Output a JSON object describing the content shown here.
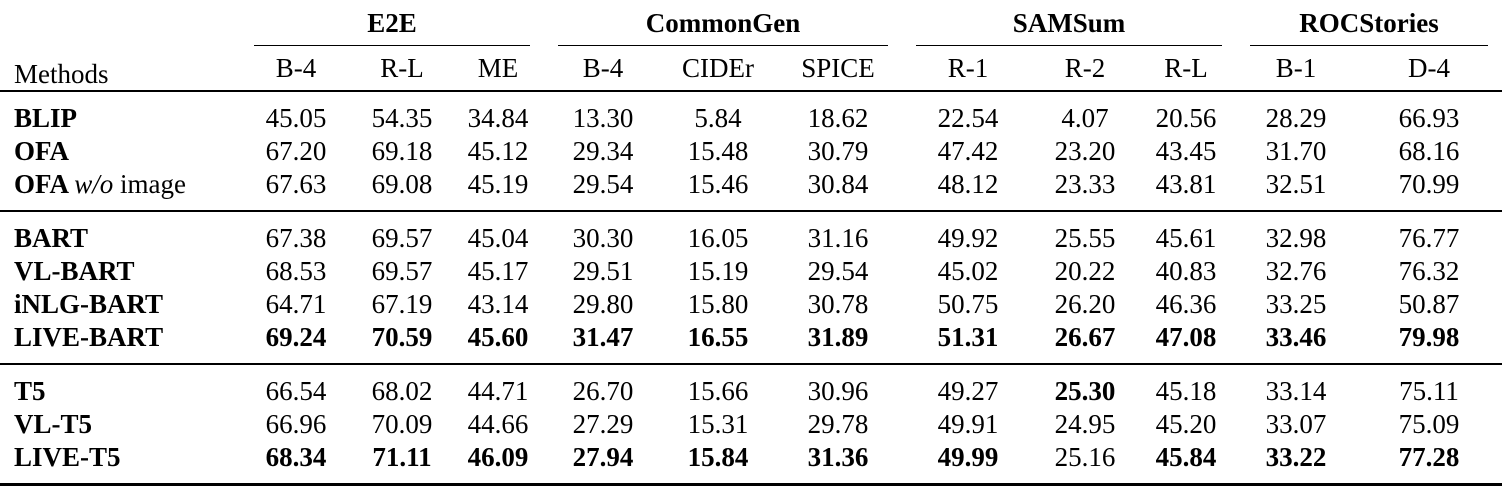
{
  "table": {
    "methods_header": "Methods",
    "groups_header": [
      {
        "label": "E2E",
        "cols": [
          "B-4",
          "R-L",
          "ME"
        ]
      },
      {
        "label": "CommonGen",
        "cols": [
          "B-4",
          "CIDEr",
          "SPICE"
        ]
      },
      {
        "label": "SAMSum",
        "cols": [
          "R-1",
          "R-2",
          "R-L"
        ]
      },
      {
        "label": "ROCStories",
        "cols": [
          "B-1",
          "D-4"
        ]
      }
    ],
    "row_groups": [
      {
        "rows": [
          {
            "method": [
              {
                "text": "BLIP",
                "style": "bold"
              }
            ],
            "values": [
              "45.05",
              "54.35",
              "34.84",
              "13.30",
              "5.84",
              "18.62",
              "22.54",
              "4.07",
              "20.56",
              "28.29",
              "66.93"
            ],
            "bold": []
          },
          {
            "method": [
              {
                "text": "OFA",
                "style": "bold"
              }
            ],
            "values": [
              "67.20",
              "69.18",
              "45.12",
              "29.34",
              "15.48",
              "30.79",
              "47.42",
              "23.20",
              "43.45",
              "31.70",
              "68.16"
            ],
            "bold": []
          },
          {
            "method": [
              {
                "text": "OFA ",
                "style": "bold"
              },
              {
                "text": "w/o",
                "style": "italic"
              },
              {
                "text": " image",
                "style": "normal"
              }
            ],
            "values": [
              "67.63",
              "69.08",
              "45.19",
              "29.54",
              "15.46",
              "30.84",
              "48.12",
              "23.33",
              "43.81",
              "32.51",
              "70.99"
            ],
            "bold": []
          }
        ]
      },
      {
        "rows": [
          {
            "method": [
              {
                "text": "BART",
                "style": "bold"
              }
            ],
            "values": [
              "67.38",
              "69.57",
              "45.04",
              "30.30",
              "16.05",
              "31.16",
              "49.92",
              "25.55",
              "45.61",
              "32.98",
              "76.77"
            ],
            "bold": []
          },
          {
            "method": [
              {
                "text": "VL-BART",
                "style": "bold"
              }
            ],
            "values": [
              "68.53",
              "69.57",
              "45.17",
              "29.51",
              "15.19",
              "29.54",
              "45.02",
              "20.22",
              "40.83",
              "32.76",
              "76.32"
            ],
            "bold": []
          },
          {
            "method": [
              {
                "text": "iNLG-BART",
                "style": "bold"
              }
            ],
            "values": [
              "64.71",
              "67.19",
              "43.14",
              "29.80",
              "15.80",
              "30.78",
              "50.75",
              "26.20",
              "46.36",
              "33.25",
              "50.87"
            ],
            "bold": []
          },
          {
            "method": [
              {
                "text": "LIVE-BART",
                "style": "bold"
              }
            ],
            "values": [
              "69.24",
              "70.59",
              "45.60",
              "31.47",
              "16.55",
              "31.89",
              "51.31",
              "26.67",
              "47.08",
              "33.46",
              "79.98"
            ],
            "bold": [
              0,
              1,
              2,
              3,
              4,
              5,
              6,
              7,
              8,
              9,
              10
            ]
          }
        ]
      },
      {
        "rows": [
          {
            "method": [
              {
                "text": "T5",
                "style": "bold"
              }
            ],
            "values": [
              "66.54",
              "68.02",
              "44.71",
              "26.70",
              "15.66",
              "30.96",
              "49.27",
              "25.30",
              "45.18",
              "33.14",
              "75.11"
            ],
            "bold": [
              7
            ]
          },
          {
            "method": [
              {
                "text": "VL-T5",
                "style": "bold"
              }
            ],
            "values": [
              "66.96",
              "70.09",
              "44.66",
              "27.29",
              "15.31",
              "29.78",
              "49.91",
              "24.95",
              "45.20",
              "33.07",
              "75.09"
            ],
            "bold": []
          },
          {
            "method": [
              {
                "text": "LIVE-T5",
                "style": "bold"
              }
            ],
            "values": [
              "68.34",
              "71.11",
              "46.09",
              "27.94",
              "15.84",
              "31.36",
              "49.99",
              "25.16",
              "45.84",
              "33.22",
              "77.28"
            ],
            "bold": [
              0,
              1,
              2,
              3,
              4,
              5,
              6,
              8,
              9,
              10
            ]
          }
        ]
      }
    ]
  }
}
